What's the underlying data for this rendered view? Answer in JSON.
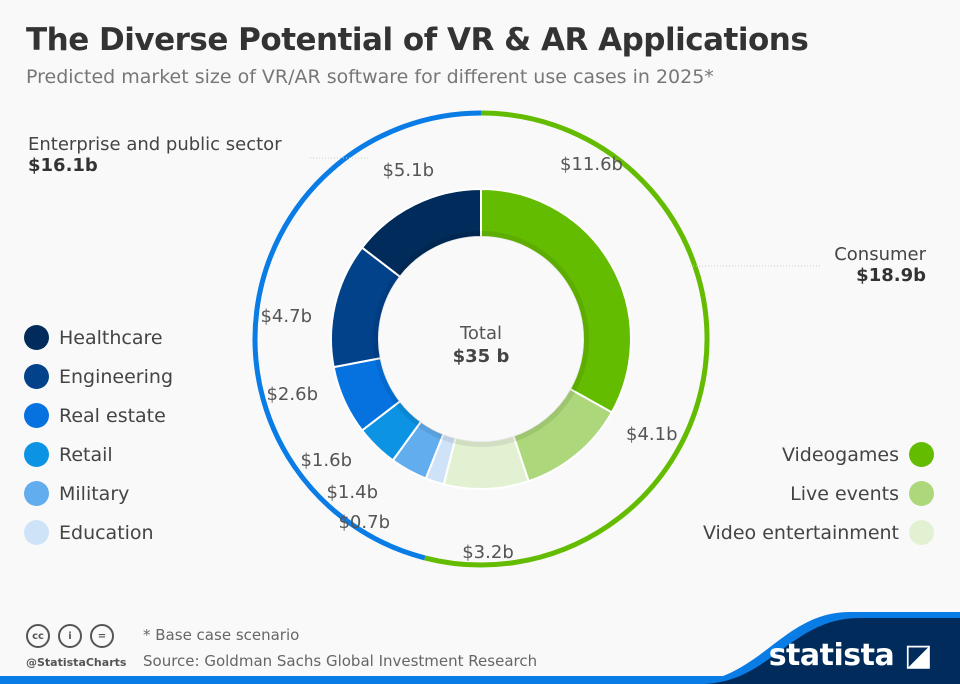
{
  "title": "The Diverse Potential of VR & AR Applications",
  "subtitle": "Predicted market size of VR/AR software for different use cases in 2025*",
  "chart_data": {
    "type": "pie",
    "donut": true,
    "title": "The Diverse Potential of VR & AR Applications",
    "subtitle": "Predicted market size of VR/AR software for different use cases in 2025*",
    "unit": "billion USD",
    "total": {
      "label": "Total",
      "value_label": "$35 b",
      "value": 35
    },
    "groups": [
      {
        "name": "Consumer",
        "value": 18.9,
        "value_label": "$18.9b",
        "color": "#64bc00"
      },
      {
        "name": "Enterprise and public sector",
        "value": 16.1,
        "value_label": "$16.1b",
        "color": "#0a7ce6"
      }
    ],
    "slices": [
      {
        "name": "Videogames",
        "value": 11.6,
        "label": "$11.6b",
        "color": "#64bc00",
        "group": "Consumer"
      },
      {
        "name": "Live events",
        "value": 4.1,
        "label": "$4.1b",
        "color": "#acd77a",
        "group": "Consumer"
      },
      {
        "name": "Video entertainment",
        "value": 3.2,
        "label": "$3.2b",
        "color": "#e3f1d3",
        "group": "Consumer"
      },
      {
        "name": "Education",
        "value": 0.7,
        "label": "$0.7b",
        "color": "#cfe3f8",
        "group": "Enterprise and public sector"
      },
      {
        "name": "Military",
        "value": 1.4,
        "label": "$1.4b",
        "color": "#62adee",
        "group": "Enterprise and public sector"
      },
      {
        "name": "Retail",
        "value": 1.6,
        "label": "$1.6b",
        "color": "#0d93e4",
        "group": "Enterprise and public sector"
      },
      {
        "name": "Real estate",
        "value": 2.6,
        "label": "$2.6b",
        "color": "#0672e0",
        "group": "Enterprise and public sector"
      },
      {
        "name": "Engineering",
        "value": 4.7,
        "label": "$4.7b",
        "color": "#01428a",
        "group": "Enterprise and public sector"
      },
      {
        "name": "Healthcare",
        "value": 5.1,
        "label": "$5.1b",
        "color": "#002b5a",
        "group": "Enterprise and public sector"
      }
    ],
    "legend_left": [
      "Healthcare",
      "Engineering",
      "Real estate",
      "Retail",
      "Military",
      "Education"
    ],
    "legend_right": [
      "Videogames",
      "Live events",
      "Video entertainment"
    ]
  },
  "footer": {
    "note": "* Base case scenario",
    "source": "Source: Goldman Sachs Global Investment Research",
    "handle": "@StatistaCharts",
    "logo": "statista",
    "license_icons": [
      "cc",
      "i",
      "="
    ]
  }
}
